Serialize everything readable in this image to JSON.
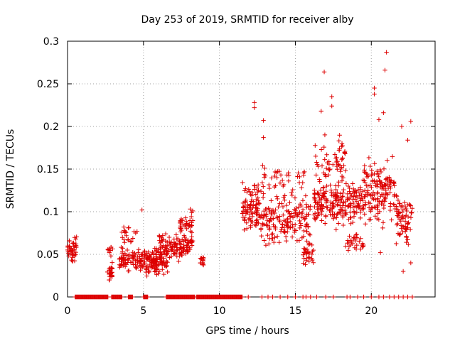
{
  "chart_data": {
    "type": "scatter",
    "title": "Day 253 of 2019, SRMTID for receiver alby",
    "xlabel": "GPS time / hours",
    "ylabel": "SRMTID / TECUs",
    "xlim": [
      0,
      24.2
    ],
    "ylim": [
      0,
      0.3
    ],
    "x_ticks": [
      0,
      5,
      10,
      15,
      20
    ],
    "x_tick_labels": [
      "0",
      "5",
      "10",
      "15",
      "20"
    ],
    "y_ticks": [
      0,
      0.05,
      0.1,
      0.15,
      0.2,
      0.25,
      0.3
    ],
    "y_tick_labels": [
      "0",
      "0.05",
      "0.1",
      "0.15",
      "0.2",
      "0.25",
      "0.3"
    ],
    "grid": true,
    "marker": "+",
    "color": "#dd0000",
    "series": [
      {
        "name": "SRMTID",
        "clusters": [
          {
            "x": [
              0.0,
              0.6
            ],
            "y_center": 0.055,
            "spread": 0.012,
            "count": 45
          },
          {
            "x": [
              2.6,
              3.0
            ],
            "y_center": 0.03,
            "spread": 0.008,
            "count": 25
          },
          {
            "x": [
              2.6,
              3.0
            ],
            "y_center": 0.055,
            "spread": 0.006,
            "count": 10
          },
          {
            "x": [
              3.4,
              4.6
            ],
            "y_center": 0.045,
            "spread": 0.01,
            "count": 60
          },
          {
            "x": [
              3.5,
              4.6
            ],
            "y_center": 0.075,
            "spread": 0.01,
            "count": 20
          },
          {
            "x": [
              4.6,
              6.6
            ],
            "y_center": 0.042,
            "spread": 0.012,
            "count": 150
          },
          {
            "x": [
              6.0,
              8.3
            ],
            "y_center": 0.06,
            "spread": 0.012,
            "count": 130
          },
          {
            "x": [
              7.4,
              8.3
            ],
            "y_center": 0.085,
            "spread": 0.012,
            "count": 40
          },
          {
            "x": [
              8.7,
              9.0
            ],
            "y_center": 0.045,
            "spread": 0.008,
            "count": 15
          },
          {
            "x": [
              11.5,
              12.6
            ],
            "y_center": 0.105,
            "spread": 0.025,
            "count": 90
          },
          {
            "x": [
              12.6,
              16.0
            ],
            "y_center": 0.09,
            "spread": 0.022,
            "count": 180
          },
          {
            "x": [
              12.8,
              15.8
            ],
            "y_center": 0.135,
            "spread": 0.015,
            "count": 40
          },
          {
            "x": [
              15.5,
              16.2
            ],
            "y_center": 0.05,
            "spread": 0.012,
            "count": 30
          },
          {
            "x": [
              16.2,
              19.5
            ],
            "y_center": 0.11,
            "spread": 0.02,
            "count": 220
          },
          {
            "x": [
              16.3,
              18.3
            ],
            "y_center": 0.16,
            "spread": 0.02,
            "count": 60
          },
          {
            "x": [
              18.3,
              19.5
            ],
            "y_center": 0.065,
            "spread": 0.01,
            "count": 30
          },
          {
            "x": [
              19.5,
              21.6
            ],
            "y_center": 0.125,
            "spread": 0.03,
            "count": 150
          },
          {
            "x": [
              21.6,
              22.7
            ],
            "y_center": 0.09,
            "spread": 0.025,
            "count": 70
          }
        ],
        "outliers": [
          {
            "x": 4.9,
            "y": 0.102
          },
          {
            "x": 12.3,
            "y": 0.228
          },
          {
            "x": 12.3,
            "y": 0.222
          },
          {
            "x": 12.9,
            "y": 0.207
          },
          {
            "x": 12.9,
            "y": 0.187
          },
          {
            "x": 16.7,
            "y": 0.218
          },
          {
            "x": 16.9,
            "y": 0.264
          },
          {
            "x": 17.4,
            "y": 0.235
          },
          {
            "x": 17.4,
            "y": 0.224
          },
          {
            "x": 20.2,
            "y": 0.245
          },
          {
            "x": 20.2,
            "y": 0.238
          },
          {
            "x": 20.5,
            "y": 0.208
          },
          {
            "x": 20.8,
            "y": 0.216
          },
          {
            "x": 20.9,
            "y": 0.266
          },
          {
            "x": 21.0,
            "y": 0.287
          },
          {
            "x": 22.0,
            "y": 0.2
          },
          {
            "x": 22.4,
            "y": 0.184
          },
          {
            "x": 22.6,
            "y": 0.206
          },
          {
            "x": 22.6,
            "y": 0.04
          },
          {
            "x": 22.1,
            "y": 0.03
          },
          {
            "x": 20.6,
            "y": 0.052
          }
        ],
        "zero_segments": [
          [
            0.5,
            2.7
          ],
          [
            2.9,
            3.6
          ],
          [
            4.0,
            4.3
          ],
          [
            5.0,
            5.3
          ],
          [
            6.5,
            8.4
          ],
          [
            8.5,
            11.5
          ]
        ],
        "zero_points": [
          11.9,
          12.8,
          13.2,
          13.5,
          14.0,
          14.5,
          15.0,
          15.5,
          15.7,
          16.0,
          16.4,
          17.0,
          17.5,
          18.4,
          18.6,
          19.1,
          19.5,
          20.0,
          20.5,
          20.8,
          21.2,
          21.5,
          21.8,
          22.1,
          22.4,
          22.7
        ]
      }
    ]
  }
}
